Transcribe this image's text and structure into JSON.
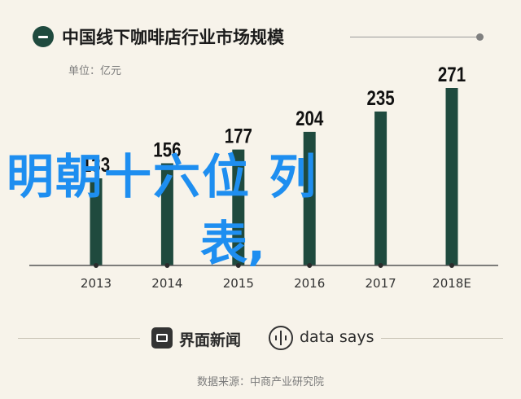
{
  "header": {
    "title": "中国线下咖啡店行业市场规模",
    "unit": "单位：亿元"
  },
  "overlay": {
    "line1": "明朝十六位  列",
    "line2": "表,"
  },
  "footer": {
    "brand1": "界面新闻",
    "brand2": "data says",
    "source": "数据来源：中商产业研究院"
  },
  "colors": {
    "background": "#f7f3ea",
    "bar": "#1f4a3e",
    "overlay_text": "#1e8ef0"
  },
  "chart_data": {
    "type": "bar",
    "title": "中国线下咖啡店行业市场规模",
    "ylabel": "单位：亿元",
    "categories": [
      "2013",
      "2014",
      "2015",
      "2016",
      "2017",
      "2018E"
    ],
    "values": [
      133,
      156,
      177,
      204,
      235,
      271
    ],
    "value_labels": [
      "133",
      "156",
      "177",
      "204",
      "235",
      "271"
    ],
    "ylim": [
      0,
      300
    ],
    "grid": false,
    "legend": "none"
  }
}
